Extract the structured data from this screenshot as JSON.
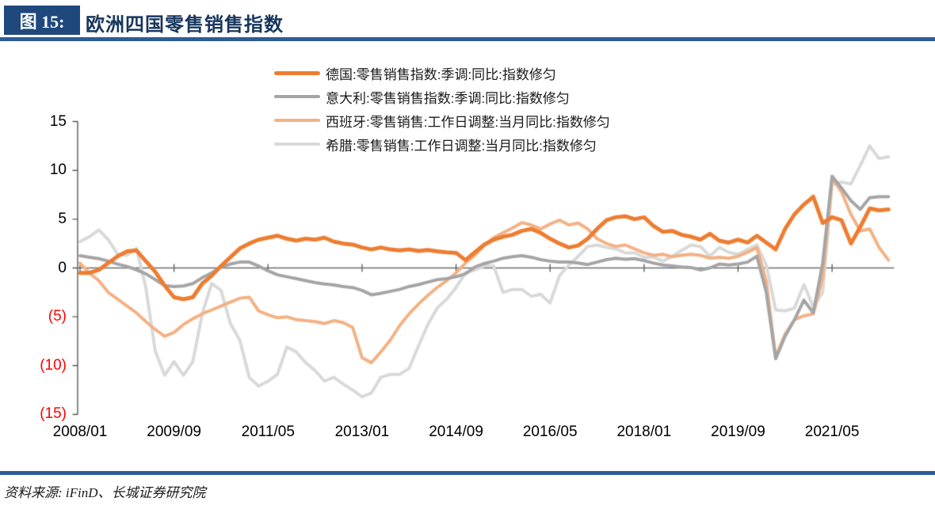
{
  "header": {
    "figure_label": "图 15:",
    "title": "欧洲四国零售销售指数"
  },
  "source": {
    "text": "资料来源: iFinD、长城证券研究院"
  },
  "colors": {
    "header_box_bg": "#1F497D",
    "rule_blue": "#2F5C97",
    "title_text": "#17365D",
    "axis_gray": "#595959",
    "zero_line_gray": "#6E6E6E",
    "negative_tick_red": "#FF0000"
  },
  "chart_data": {
    "type": "line",
    "title": "欧洲四国零售销售指数",
    "ylabel": "",
    "xlabel": "",
    "ylim": [
      -15,
      15
    ],
    "grid": false,
    "legend_position": "top-center",
    "x_start": "2008/01",
    "x_end": "2022/05",
    "x_step_months": 2,
    "x_ticks": [
      {
        "label": "2008/01",
        "month": 0
      },
      {
        "label": "2009/09",
        "month": 20
      },
      {
        "label": "2011/05",
        "month": 40
      },
      {
        "label": "2013/01",
        "month": 60
      },
      {
        "label": "2014/09",
        "month": 80
      },
      {
        "label": "2016/05",
        "month": 100
      },
      {
        "label": "2018/01",
        "month": 120
      },
      {
        "label": "2019/09",
        "month": 140
      },
      {
        "label": "2021/05",
        "month": 160
      }
    ],
    "y_ticks": [
      {
        "label": "15",
        "value": 15,
        "color": "#000000"
      },
      {
        "label": "10",
        "value": 10,
        "color": "#000000"
      },
      {
        "label": "5",
        "value": 5,
        "color": "#000000"
      },
      {
        "label": "0",
        "value": 0,
        "color": "#000000"
      },
      {
        "label": "(5)",
        "value": -5,
        "color": "#FF0000"
      },
      {
        "label": "(10)",
        "value": -10,
        "color": "#FF0000"
      },
      {
        "label": "(15)",
        "value": -15,
        "color": "#FF0000"
      }
    ],
    "series": [
      {
        "name": "德国:零售销售指数:季调:同比:指数修匀",
        "color": "#ED7D31",
        "line_width": 5,
        "values": [
          -0.5,
          -0.5,
          -0.2,
          0.5,
          1.2,
          1.7,
          1.8,
          0.7,
          -0.4,
          -1.8,
          -3.0,
          -3.2,
          -3.0,
          -1.6,
          -0.8,
          0.2,
          1.1,
          2.0,
          2.5,
          2.9,
          3.1,
          3.3,
          3.0,
          2.8,
          3.0,
          2.9,
          3.1,
          2.7,
          2.5,
          2.4,
          2.1,
          1.9,
          2.1,
          1.9,
          1.8,
          1.9,
          1.75,
          1.85,
          1.7,
          1.6,
          1.55,
          0.8,
          1.6,
          2.4,
          2.9,
          3.2,
          3.4,
          3.8,
          4.0,
          3.6,
          3.0,
          2.5,
          2.1,
          2.3,
          3.0,
          4.0,
          4.9,
          5.2,
          5.3,
          5.0,
          5.2,
          4.3,
          3.7,
          3.8,
          3.4,
          3.2,
          2.9,
          3.5,
          2.8,
          2.6,
          2.9,
          2.6,
          3.3,
          2.6,
          1.9,
          4.0,
          5.5,
          6.5,
          7.3,
          4.6,
          5.2,
          4.9,
          2.5,
          4.2,
          6.1,
          5.9,
          6.0
        ]
      },
      {
        "name": "意大利:零售销售指数:季调:同比:指数修匀",
        "color": "#A5A5A5",
        "line_width": 4,
        "values": [
          1.25,
          1.1,
          0.95,
          0.7,
          0.4,
          0.15,
          -0.2,
          -0.6,
          -1.2,
          -1.8,
          -1.9,
          -1.85,
          -1.6,
          -1.0,
          -0.5,
          0.1,
          0.4,
          0.6,
          0.6,
          0.2,
          -0.3,
          -0.7,
          -0.9,
          -1.1,
          -1.3,
          -1.5,
          -1.65,
          -1.75,
          -1.9,
          -2.0,
          -2.3,
          -2.75,
          -2.6,
          -2.4,
          -2.2,
          -1.9,
          -1.7,
          -1.45,
          -1.2,
          -1.1,
          -0.9,
          -0.6,
          0.1,
          0.45,
          0.7,
          1.0,
          1.15,
          1.25,
          1.1,
          0.85,
          0.7,
          0.6,
          0.6,
          0.5,
          0.35,
          0.6,
          0.85,
          1.0,
          0.9,
          0.95,
          0.75,
          0.5,
          0.3,
          0.2,
          0.1,
          0.05,
          -0.2,
          0.0,
          0.4,
          0.3,
          0.4,
          0.6,
          1.2,
          -2.5,
          -9.3,
          -7.0,
          -5.3,
          -3.3,
          -4.6,
          0.5,
          9.4,
          8.2,
          6.9,
          6.0,
          7.2,
          7.3,
          7.3
        ]
      },
      {
        "name": "西班牙:零售销售:工作日调整:当月同比:指数修匀",
        "color": "#F4B183",
        "line_width": 4,
        "values": [
          0.5,
          -0.5,
          -1.3,
          -2.5,
          -3.2,
          -3.9,
          -4.6,
          -5.5,
          -6.3,
          -7.0,
          -6.6,
          -5.8,
          -5.2,
          -4.7,
          -4.3,
          -3.9,
          -3.5,
          -3.1,
          -3.0,
          -4.4,
          -4.8,
          -5.1,
          -5.0,
          -5.3,
          -5.4,
          -5.5,
          -5.7,
          -5.4,
          -5.6,
          -6.1,
          -9.2,
          -9.7,
          -8.6,
          -7.4,
          -5.9,
          -4.7,
          -3.7,
          -2.8,
          -2.0,
          -1.3,
          -0.5,
          0.5,
          1.3,
          2.3,
          3.1,
          3.6,
          4.1,
          4.65,
          4.4,
          4.0,
          4.5,
          4.9,
          4.4,
          4.6,
          4.0,
          3.0,
          2.5,
          2.2,
          2.35,
          1.95,
          1.55,
          1.3,
          1.4,
          1.15,
          1.3,
          1.4,
          1.3,
          1.0,
          1.1,
          1.0,
          1.2,
          1.6,
          2.1,
          -1.4,
          -9.1,
          -6.8,
          -5.3,
          -4.9,
          -4.7,
          -1.0,
          9.2,
          7.8,
          5.5,
          3.8,
          4.0,
          2.1,
          0.8
        ]
      },
      {
        "name": "希腊:零售销售:工作日调整:当月同比:指数修匀",
        "color": "#D9D9D9",
        "line_width": 4,
        "values": [
          2.7,
          3.2,
          3.9,
          2.9,
          1.4,
          1.3,
          2.0,
          -2.0,
          -8.5,
          -11.0,
          -9.6,
          -11.0,
          -9.6,
          -4.7,
          -1.6,
          -2.3,
          -5.7,
          -7.4,
          -11.2,
          -12.1,
          -11.6,
          -10.9,
          -8.1,
          -8.6,
          -9.7,
          -10.5,
          -11.6,
          -11.2,
          -11.9,
          -12.5,
          -13.2,
          -12.8,
          -11.2,
          -10.9,
          -10.9,
          -10.3,
          -8.0,
          -5.8,
          -4.1,
          -3.2,
          -2.0,
          -0.5,
          -0.2,
          0.2,
          0.2,
          -2.5,
          -2.2,
          -2.2,
          -2.9,
          -2.7,
          -3.6,
          -0.8,
          0.3,
          1.2,
          2.2,
          2.35,
          2.1,
          1.95,
          1.55,
          1.55,
          1.1,
          1.1,
          0.7,
          1.2,
          1.8,
          2.35,
          2.2,
          1.2,
          2.1,
          1.6,
          1.4,
          1.9,
          2.35,
          0.3,
          -4.3,
          -4.4,
          -4.1,
          -1.7,
          -4.0,
          -2.5,
          8.5,
          8.8,
          8.6,
          10.5,
          12.5,
          11.2,
          11.4
        ]
      }
    ]
  }
}
